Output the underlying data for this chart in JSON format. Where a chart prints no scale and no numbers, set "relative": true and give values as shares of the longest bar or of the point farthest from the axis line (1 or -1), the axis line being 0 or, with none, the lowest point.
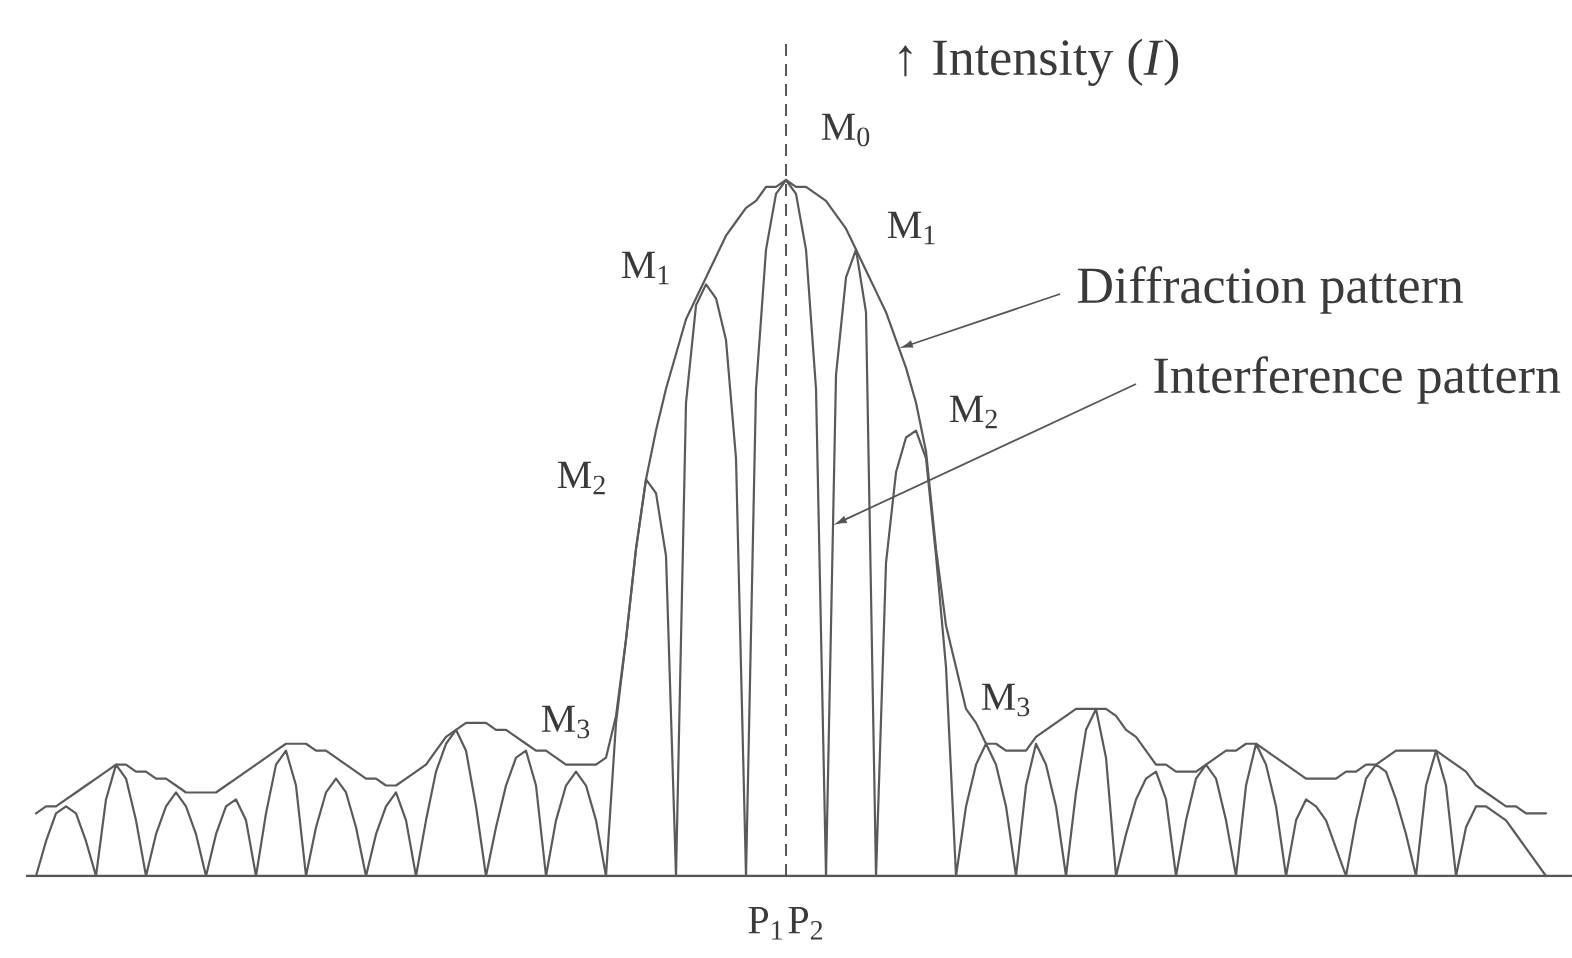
{
  "chart_data": {
    "type": "line",
    "relative": true,
    "legend": false,
    "ylabel": "↑ Intensity (*I*)",
    "categories": [
      null,
      null,
      null,
      null,
      null,
      null,
      null,
      null,
      null,
      null,
      null,
      null,
      null,
      null,
      null,
      null,
      null,
      null,
      null,
      null,
      null,
      null,
      null,
      null,
      null,
      null,
      null,
      null,
      null,
      null,
      null,
      null,
      null,
      null,
      null,
      null,
      null,
      null,
      null,
      null,
      null,
      null,
      null,
      null,
      null,
      null,
      null,
      null,
      null,
      null,
      null,
      null,
      null,
      null,
      null,
      null,
      null,
      null,
      null,
      null,
      null,
      null,
      null,
      null,
      null,
      null,
      null,
      null,
      null,
      null,
      null,
      null,
      null,
      "P$_{1}$",
      null,
      null,
      null,
      "P$_{2}$",
      null,
      null,
      null,
      null,
      null,
      null,
      null,
      null,
      null,
      null,
      null,
      null,
      null,
      null,
      null,
      null,
      null,
      null,
      null,
      null,
      null,
      null,
      null,
      null,
      null,
      null,
      null,
      null,
      null,
      null,
      null,
      null,
      null,
      null,
      null,
      null,
      null,
      null,
      null,
      null,
      null,
      null,
      null,
      null,
      null,
      null,
      null,
      null,
      null,
      null,
      null,
      null,
      null,
      null,
      null,
      null,
      null,
      null,
      null,
      null,
      null,
      null,
      null,
      null,
      null,
      null,
      null,
      null,
      null,
      null,
      null,
      null,
      null,
      null
    ],
    "series": [
      {
        "color": "#5a5a5a",
        "values": [
          0.09,
          0.1,
          0.1,
          0.11,
          0.12,
          0.13,
          0.14,
          0.15,
          0.16,
          0.16,
          0.15,
          0.15,
          0.14,
          0.14,
          0.13,
          0.12,
          0.12,
          0.12,
          0.12,
          0.13,
          0.14,
          0.15,
          0.16,
          0.17,
          0.18,
          0.19,
          0.19,
          0.19,
          0.18,
          0.18,
          0.17,
          0.16,
          0.15,
          0.14,
          0.14,
          0.13,
          0.13,
          0.14,
          0.15,
          0.16,
          0.18,
          0.2,
          0.21,
          0.22,
          0.22,
          0.22,
          0.21,
          0.21,
          0.2,
          0.19,
          0.18,
          0.18,
          0.17,
          0.16,
          0.16,
          0.16,
          0.16,
          0.17,
          0.23,
          0.34,
          0.47,
          0.57,
          0.64,
          0.7,
          0.75,
          0.8,
          0.83,
          0.86,
          0.89,
          0.92,
          0.94,
          0.96,
          0.97,
          0.99,
          0.99,
          1.0,
          0.99,
          0.99,
          0.98,
          0.97,
          0.95,
          0.93,
          0.9,
          0.87,
          0.84,
          0.81,
          0.77,
          0.73,
          0.68,
          0.61,
          0.47,
          0.36,
          0.3,
          0.24,
          0.22,
          0.19,
          0.19,
          0.18,
          0.18,
          0.18,
          0.2,
          0.21,
          0.22,
          0.23,
          0.24,
          0.24,
          0.24,
          0.24,
          0.23,
          0.21,
          0.2,
          0.18,
          0.16,
          0.16,
          0.15,
          0.15,
          0.15,
          0.16,
          0.17,
          0.18,
          0.18,
          0.19,
          0.19,
          0.18,
          0.17,
          0.16,
          0.15,
          0.14,
          0.14,
          0.14,
          0.14,
          0.15,
          0.15,
          0.16,
          0.16,
          0.17,
          0.18,
          0.18,
          0.18,
          0.18,
          0.18,
          0.17,
          0.16,
          0.15,
          0.13,
          0.12,
          0.11,
          0.1,
          0.1,
          0.09,
          0.09,
          0.09
        ]
      },
      {
        "color": "#5a5a5a",
        "values": [
          0,
          0.05,
          0.09,
          0.1,
          0.09,
          0.05,
          0,
          0.11,
          0.16,
          0.14,
          0.08,
          0,
          0.06,
          0.1,
          0.12,
          0.1,
          0.06,
          0,
          0.06,
          0.1,
          0.11,
          0.08,
          0,
          0.09,
          0.16,
          0.18,
          0.13,
          0,
          0.07,
          0.12,
          0.14,
          0.12,
          0.07,
          0,
          0.06,
          0.1,
          0.12,
          0.08,
          0,
          0.08,
          0.15,
          0.19,
          0.21,
          0.18,
          0.1,
          0,
          0.07,
          0.13,
          0.17,
          0.18,
          0.13,
          0,
          0.08,
          0.13,
          0.15,
          0.13,
          0.08,
          0,
          0.22,
          0.34,
          0.47,
          0.57,
          0.55,
          0.46,
          0,
          0.68,
          0.82,
          0.85,
          0.83,
          0.77,
          0.6,
          0,
          0.7,
          0.9,
          0.98,
          1.0,
          0.98,
          0.9,
          0.7,
          0,
          0.72,
          0.86,
          0.9,
          0.81,
          0,
          0.45,
          0.58,
          0.63,
          0.64,
          0.6,
          0.46,
          0.3,
          0,
          0.1,
          0.16,
          0.19,
          0.16,
          0.1,
          0,
          0.13,
          0.19,
          0.16,
          0.1,
          0,
          0.12,
          0.21,
          0.24,
          0.17,
          0,
          0.06,
          0.11,
          0.14,
          0.15,
          0.11,
          0,
          0.08,
          0.14,
          0.16,
          0.14,
          0.08,
          0,
          0.13,
          0.19,
          0.16,
          0.1,
          0,
          0.08,
          0.11,
          0.1,
          0.08,
          0.04,
          0,
          0.08,
          0.14,
          0.16,
          0.15,
          0.11,
          0.06,
          0,
          0.13,
          0.18,
          0.13,
          0,
          0.07,
          0.1,
          0.1,
          0.09,
          0.08,
          0.06,
          0.04,
          0.02,
          0
        ]
      }
    ],
    "annotations": [
      "M$_{3}$",
      "M$_{2}$",
      "M$_{1}$",
      "M$_{0}$",
      "M$_{1}$",
      "M$_{2}$",
      "M$_{3}$",
      "Diffraction pattern",
      "Interference pattern"
    ]
  }
}
